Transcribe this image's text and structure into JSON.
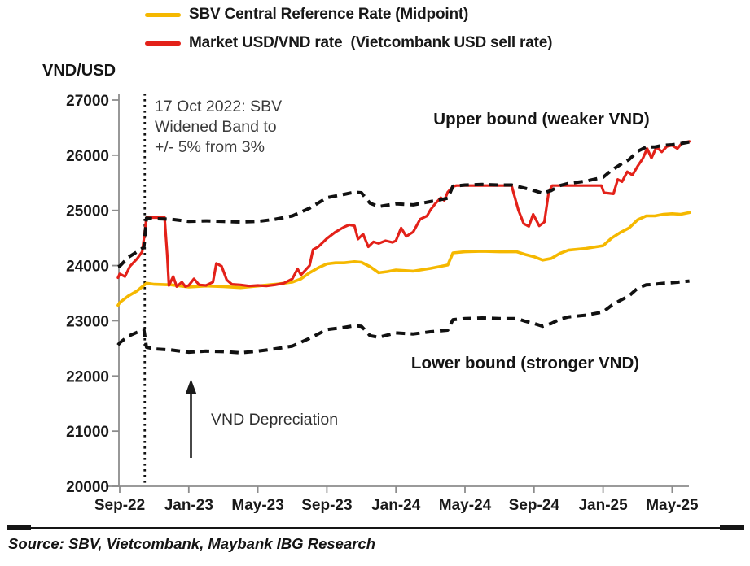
{
  "source": "Source: SBV, Vietcombank, Maybank IBG Research",
  "chart_data": {
    "type": "line",
    "title": "",
    "ylabel": "VND/USD",
    "xlabel": "",
    "ylim": [
      20000,
      27000
    ],
    "grid": false,
    "legend_position": "top-left",
    "y_ticks": [
      27000,
      26000,
      25000,
      24000,
      23000,
      22000,
      21000,
      20000
    ],
    "x_ticks": [
      {
        "label": "Sep-22",
        "month": 0
      },
      {
        "label": "Jan-23",
        "month": 4
      },
      {
        "label": "May-23",
        "month": 8
      },
      {
        "label": "Sep-23",
        "month": 12
      },
      {
        "label": "Jan-24",
        "month": 16
      },
      {
        "label": "May-24",
        "month": 20
      },
      {
        "label": "Sep-24",
        "month": 24
      },
      {
        "label": "Jan-25",
        "month": 28
      },
      {
        "label": "May-25",
        "month": 32
      }
    ],
    "x_unit": "months since Sep-2022",
    "event_line": {
      "month": 1.45,
      "style": "dotted-vertical"
    },
    "annotations": {
      "band_note_lines": [
        "17 Oct 2022: SBV",
        "Widened Band to",
        "+/- 5% from 3%"
      ],
      "upper_bound": "Upper bound (weaker VND)",
      "lower_bound": "Lower bound (stronger VND)",
      "depreciation": "VND Depreciation"
    },
    "series": [
      {
        "id": "midpoint",
        "name": "SBV Central Reference Rate (Midpoint)",
        "color": "#F5B800",
        "style": "solid",
        "width": 3.6,
        "values": [
          [
            -0.1,
            23280
          ],
          [
            0,
            23330
          ],
          [
            0.5,
            23450
          ],
          [
            1,
            23540
          ],
          [
            1.55,
            23680
          ],
          [
            2,
            23660
          ],
          [
            3,
            23650
          ],
          [
            4,
            23610
          ],
          [
            5,
            23630
          ],
          [
            6,
            23620
          ],
          [
            7,
            23600
          ],
          [
            8,
            23630
          ],
          [
            9,
            23660
          ],
          [
            9.5,
            23680
          ],
          [
            10,
            23700
          ],
          [
            10.5,
            23760
          ],
          [
            11,
            23870
          ],
          [
            11.5,
            23960
          ],
          [
            12,
            24030
          ],
          [
            12.5,
            24050
          ],
          [
            13,
            24050
          ],
          [
            13.6,
            24070
          ],
          [
            14,
            24060
          ],
          [
            14.5,
            23980
          ],
          [
            15,
            23870
          ],
          [
            15.5,
            23890
          ],
          [
            16,
            23920
          ],
          [
            17,
            23900
          ],
          [
            18,
            23950
          ],
          [
            19,
            24010
          ],
          [
            19.3,
            24230
          ],
          [
            20,
            24250
          ],
          [
            21,
            24260
          ],
          [
            22,
            24250
          ],
          [
            23,
            24250
          ],
          [
            23.5,
            24200
          ],
          [
            24,
            24160
          ],
          [
            24.5,
            24100
          ],
          [
            25,
            24130
          ],
          [
            25.5,
            24220
          ],
          [
            26,
            24280
          ],
          [
            27,
            24310
          ],
          [
            28,
            24360
          ],
          [
            28.5,
            24500
          ],
          [
            29,
            24600
          ],
          [
            29.5,
            24680
          ],
          [
            30,
            24830
          ],
          [
            30.5,
            24900
          ],
          [
            31,
            24900
          ],
          [
            31.5,
            24930
          ],
          [
            32,
            24940
          ],
          [
            32.5,
            24930
          ],
          [
            33,
            24960
          ]
        ]
      },
      {
        "id": "market",
        "name": "Market USD/VND rate  (Vietcombank USD sell rate)",
        "color": "#E32119",
        "style": "solid",
        "width": 3.2,
        "values": [
          [
            -0.1,
            23780
          ],
          [
            0,
            23850
          ],
          [
            0.3,
            23800
          ],
          [
            0.6,
            23990
          ],
          [
            1,
            24120
          ],
          [
            1.3,
            24250
          ],
          [
            1.45,
            24600
          ],
          [
            1.55,
            24870
          ],
          [
            2.6,
            24870
          ],
          [
            2.75,
            24200
          ],
          [
            2.85,
            23640
          ],
          [
            3.1,
            23800
          ],
          [
            3.3,
            23620
          ],
          [
            3.6,
            23700
          ],
          [
            3.8,
            23620
          ],
          [
            4,
            23640
          ],
          [
            4.3,
            23760
          ],
          [
            4.6,
            23650
          ],
          [
            5,
            23640
          ],
          [
            5.4,
            23700
          ],
          [
            5.6,
            24040
          ],
          [
            5.9,
            23990
          ],
          [
            6.2,
            23740
          ],
          [
            6.5,
            23660
          ],
          [
            7,
            23650
          ],
          [
            7.5,
            23630
          ],
          [
            8,
            23640
          ],
          [
            8.5,
            23630
          ],
          [
            9,
            23650
          ],
          [
            9.5,
            23680
          ],
          [
            10,
            23760
          ],
          [
            10.3,
            23940
          ],
          [
            10.5,
            23830
          ],
          [
            11,
            24000
          ],
          [
            11.2,
            24290
          ],
          [
            11.5,
            24340
          ],
          [
            12,
            24490
          ],
          [
            12.5,
            24610
          ],
          [
            13,
            24700
          ],
          [
            13.3,
            24740
          ],
          [
            13.6,
            24720
          ],
          [
            13.8,
            24480
          ],
          [
            14.1,
            24570
          ],
          [
            14.4,
            24340
          ],
          [
            14.7,
            24430
          ],
          [
            15,
            24400
          ],
          [
            15.4,
            24450
          ],
          [
            15.8,
            24420
          ],
          [
            16,
            24450
          ],
          [
            16.3,
            24680
          ],
          [
            16.6,
            24530
          ],
          [
            17,
            24610
          ],
          [
            17.4,
            24840
          ],
          [
            17.8,
            24900
          ],
          [
            18,
            25010
          ],
          [
            18.3,
            25130
          ],
          [
            18.6,
            25230
          ],
          [
            18.8,
            25180
          ],
          [
            19,
            25330
          ],
          [
            19.3,
            25430
          ],
          [
            19.5,
            25450
          ],
          [
            22.7,
            25450
          ],
          [
            23.1,
            25000
          ],
          [
            23.4,
            24760
          ],
          [
            23.7,
            24710
          ],
          [
            23.95,
            24930
          ],
          [
            24.3,
            24720
          ],
          [
            24.6,
            24790
          ],
          [
            24.85,
            25330
          ],
          [
            25.05,
            25450
          ],
          [
            27.9,
            25450
          ],
          [
            28.05,
            25320
          ],
          [
            28.6,
            25300
          ],
          [
            28.85,
            25560
          ],
          [
            29.1,
            25520
          ],
          [
            29.4,
            25700
          ],
          [
            29.7,
            25640
          ],
          [
            30,
            25800
          ],
          [
            30.3,
            25940
          ],
          [
            30.55,
            26120
          ],
          [
            30.8,
            25950
          ],
          [
            31.1,
            26150
          ],
          [
            31.4,
            26060
          ],
          [
            31.7,
            26160
          ],
          [
            32,
            26180
          ],
          [
            32.3,
            26120
          ],
          [
            32.6,
            26230
          ],
          [
            33,
            26250
          ]
        ]
      },
      {
        "id": "upper-bound",
        "name": "Upper bound (weaker VND)",
        "color": "#111111",
        "style": "dashed",
        "width": 4,
        "values": [
          [
            -0.1,
            23980
          ],
          [
            0,
            23990
          ],
          [
            0.5,
            24150
          ],
          [
            1,
            24250
          ],
          [
            1.4,
            24330
          ],
          [
            1.55,
            24860
          ],
          [
            2,
            24850
          ],
          [
            3,
            24840
          ],
          [
            4,
            24800
          ],
          [
            5,
            24810
          ],
          [
            6,
            24800
          ],
          [
            7,
            24790
          ],
          [
            8,
            24800
          ],
          [
            9,
            24840
          ],
          [
            10,
            24900
          ],
          [
            11,
            25040
          ],
          [
            12,
            25230
          ],
          [
            13,
            25290
          ],
          [
            13.6,
            25330
          ],
          [
            14,
            25320
          ],
          [
            14.5,
            25130
          ],
          [
            15,
            25070
          ],
          [
            16,
            25120
          ],
          [
            17,
            25100
          ],
          [
            18,
            25160
          ],
          [
            19,
            25220
          ],
          [
            19.3,
            25440
          ],
          [
            20,
            25460
          ],
          [
            21,
            25470
          ],
          [
            22,
            25460
          ],
          [
            22.7,
            25460
          ],
          [
            23.5,
            25400
          ],
          [
            24,
            25360
          ],
          [
            24.5,
            25310
          ],
          [
            25,
            25360
          ],
          [
            25.5,
            25450
          ],
          [
            26,
            25490
          ],
          [
            27,
            25530
          ],
          [
            28,
            25600
          ],
          [
            28.5,
            25730
          ],
          [
            29,
            25830
          ],
          [
            29.5,
            25920
          ],
          [
            30,
            26070
          ],
          [
            30.5,
            26150
          ],
          [
            31,
            26150
          ],
          [
            31.5,
            26180
          ],
          [
            32,
            26190
          ],
          [
            32.5,
            26210
          ],
          [
            33,
            26240
          ]
        ]
      },
      {
        "id": "lower-bound",
        "name": "Lower bound (stronger VND)",
        "color": "#111111",
        "style": "dashed",
        "width": 4,
        "values": [
          [
            -0.1,
            22560
          ],
          [
            0,
            22600
          ],
          [
            0.5,
            22720
          ],
          [
            1,
            22790
          ],
          [
            1.4,
            22840
          ],
          [
            1.55,
            22520
          ],
          [
            2,
            22490
          ],
          [
            3,
            22470
          ],
          [
            4,
            22430
          ],
          [
            5,
            22450
          ],
          [
            6,
            22440
          ],
          [
            7,
            22420
          ],
          [
            8,
            22450
          ],
          [
            9,
            22490
          ],
          [
            10,
            22540
          ],
          [
            11,
            22680
          ],
          [
            12,
            22840
          ],
          [
            13,
            22880
          ],
          [
            13.6,
            22910
          ],
          [
            14,
            22900
          ],
          [
            14.5,
            22730
          ],
          [
            15,
            22700
          ],
          [
            16,
            22780
          ],
          [
            17,
            22760
          ],
          [
            18,
            22800
          ],
          [
            19,
            22830
          ],
          [
            19.3,
            23020
          ],
          [
            20,
            23040
          ],
          [
            21,
            23050
          ],
          [
            22,
            23040
          ],
          [
            23,
            23040
          ],
          [
            23.5,
            22990
          ],
          [
            24,
            22950
          ],
          [
            24.5,
            22900
          ],
          [
            25,
            22950
          ],
          [
            25.5,
            23030
          ],
          [
            26,
            23070
          ],
          [
            27,
            23100
          ],
          [
            28,
            23160
          ],
          [
            28.5,
            23280
          ],
          [
            29,
            23370
          ],
          [
            29.5,
            23450
          ],
          [
            30,
            23590
          ],
          [
            30.5,
            23650
          ],
          [
            31,
            23660
          ],
          [
            31.5,
            23680
          ],
          [
            32,
            23690
          ],
          [
            33,
            23720
          ]
        ]
      }
    ]
  }
}
